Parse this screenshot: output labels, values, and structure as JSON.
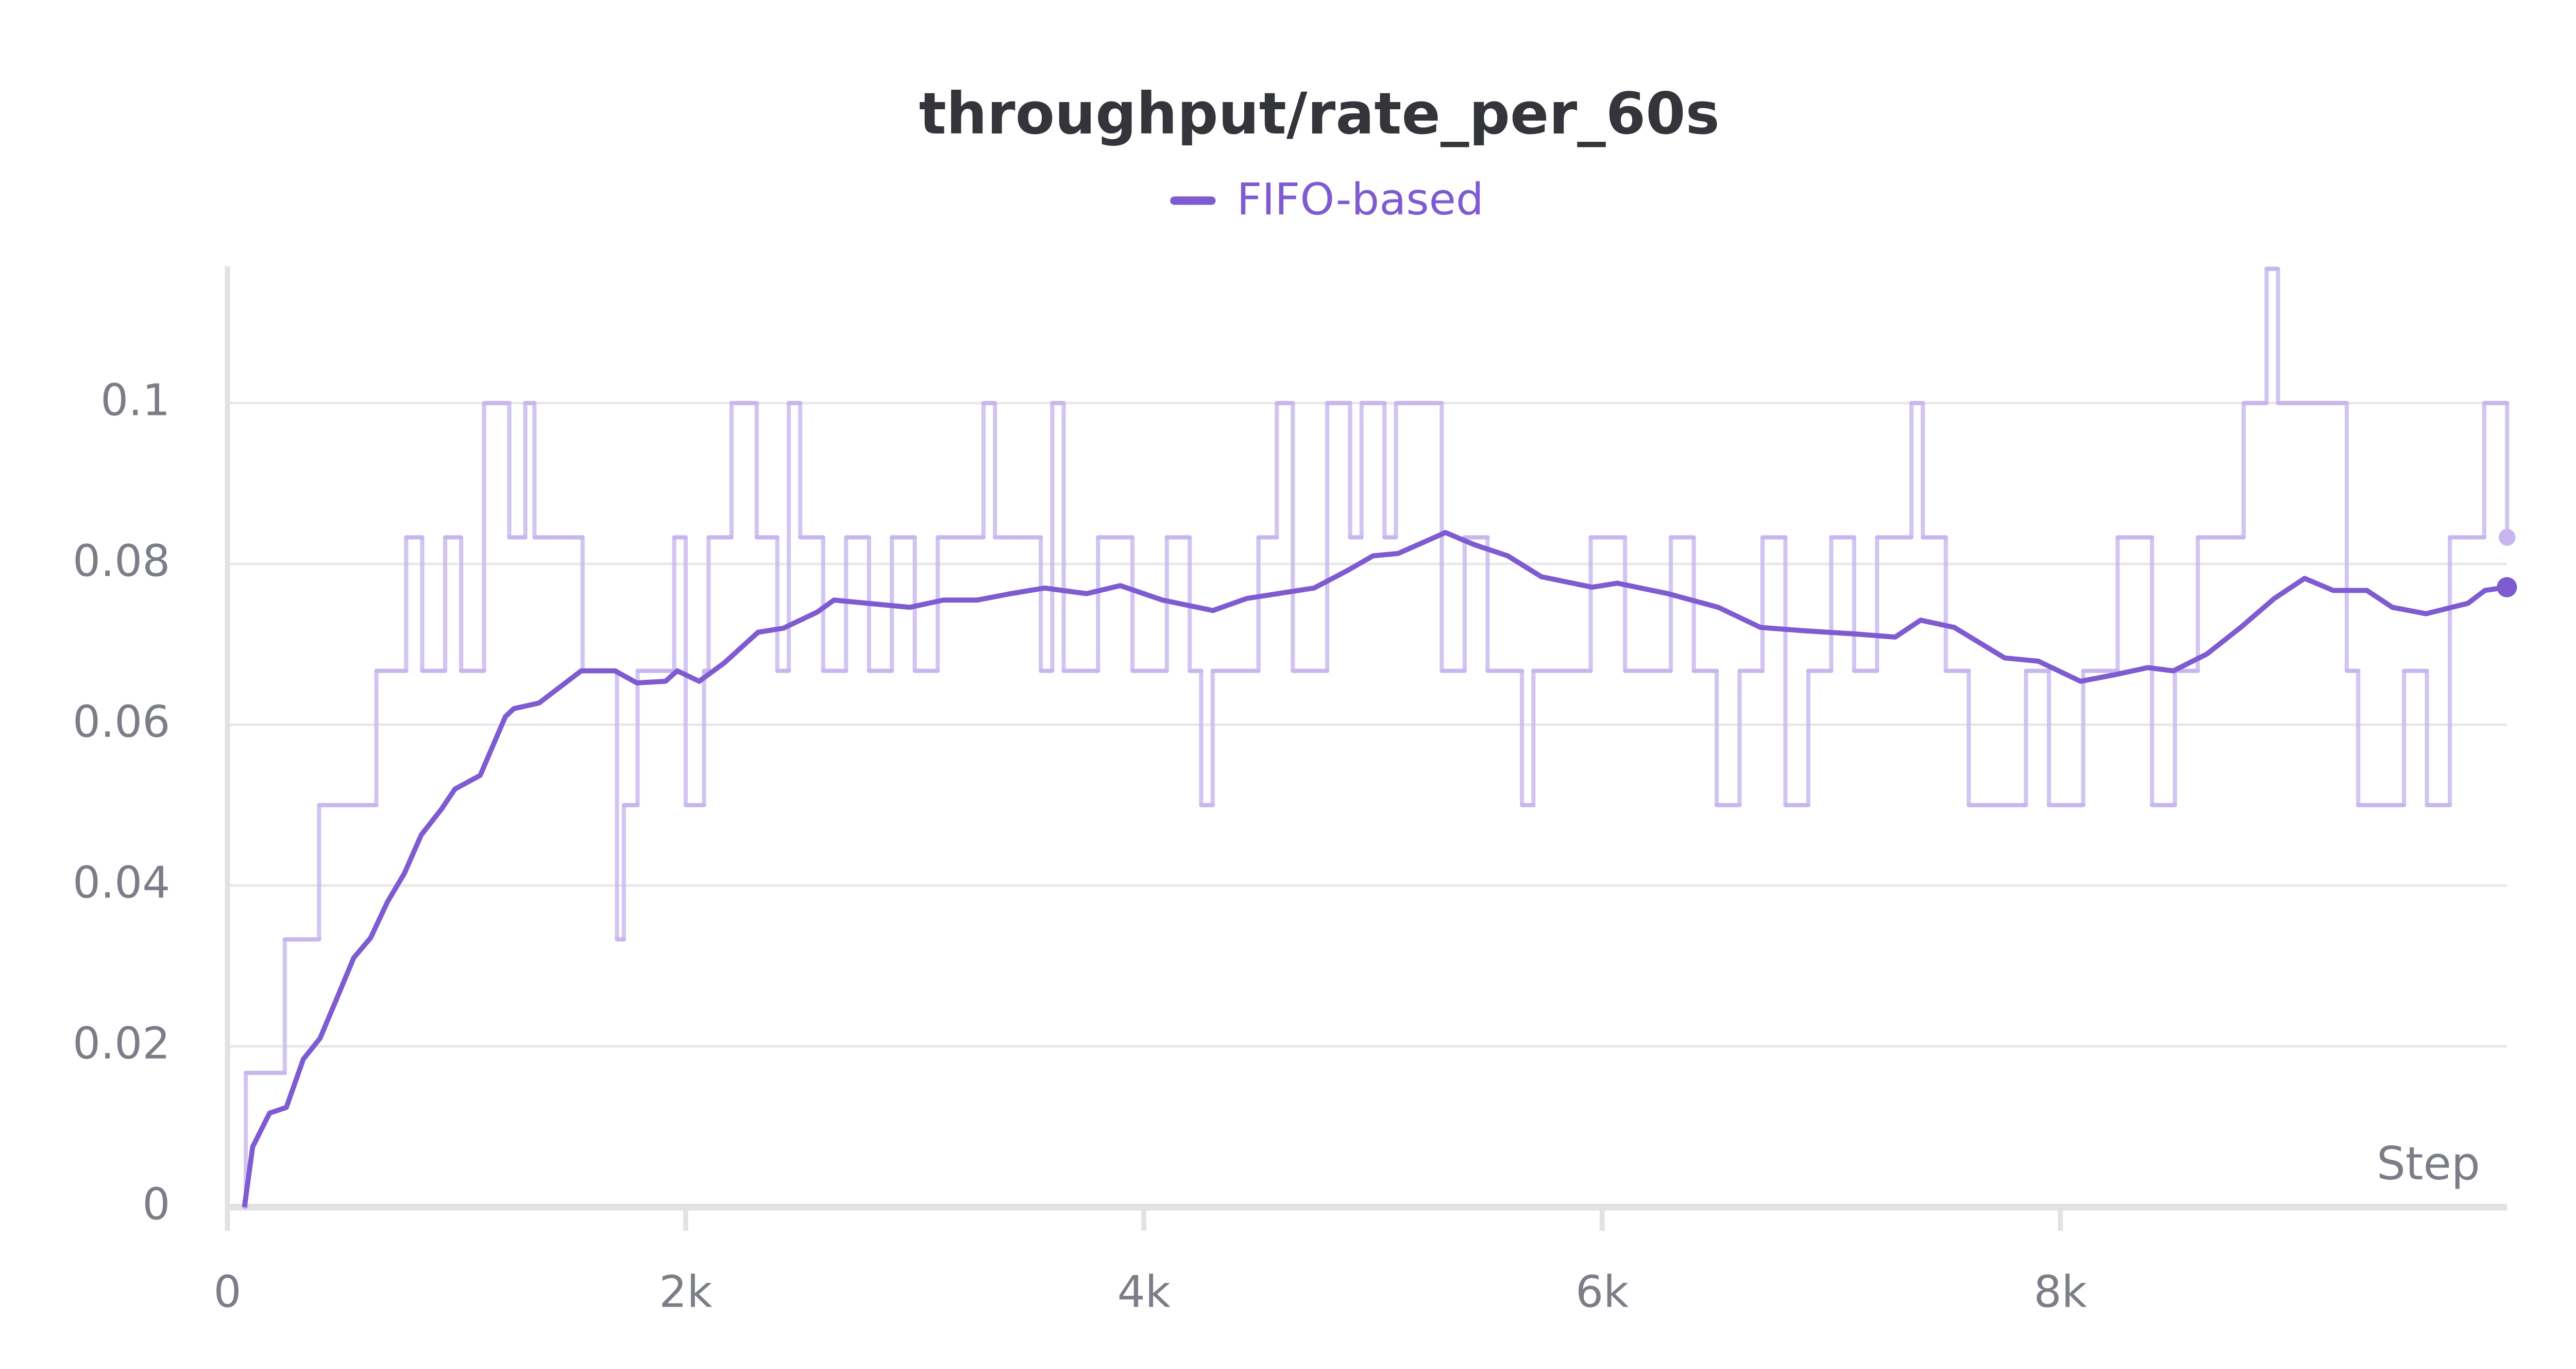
{
  "chart_data": {
    "type": "line",
    "title": "throughput/rate_per_60s",
    "x_label": "Step",
    "xlim": [
      0,
      9950
    ],
    "ylim": [
      0,
      0.117
    ],
    "xticks": [
      0,
      {
        "value": 2000,
        "label": "2k"
      },
      {
        "value": 4000,
        "label": "4k"
      },
      {
        "value": 6000,
        "label": "6k"
      },
      {
        "value": 8000,
        "label": "8k"
      }
    ],
    "yticks": [
      0,
      0.02,
      0.04,
      0.06,
      0.08,
      0.1
    ],
    "grid": true,
    "legend": "top",
    "series": [
      {
        "name": "FIFO-based",
        "color": "#7e5bd0",
        "raw_color": "#c8b7ee",
        "x": [
          74,
          110,
          184,
          257,
          331,
          404,
          478,
          551,
          625,
          699,
          772,
          846,
          934,
          993,
          1103,
          1213,
          1250,
          1360,
          1544,
          1691,
          1787,
          1912,
          1963,
          2059,
          2169,
          2316,
          2426,
          2574,
          2647,
          2831,
          2978,
          3125,
          3272,
          3419,
          3566,
          3750,
          3897,
          4081,
          4301,
          4449,
          4743,
          4890,
          5000,
          5110,
          5316,
          5441,
          5588,
          5735,
          5956,
          6066,
          6287,
          6507,
          6691,
          6875,
          7096,
          7279,
          7390,
          7537,
          7757,
          7904,
          8088,
          8235,
          8382,
          8493,
          8640,
          8787,
          8934,
          9066,
          9191,
          9338,
          9449,
          9596,
          9779,
          9853,
          9949
        ],
        "values": [
          0,
          0.0075,
          0.0117,
          0.0124,
          0.0184,
          0.021,
          0.026,
          0.031,
          0.0335,
          0.038,
          0.0415,
          0.0463,
          0.0495,
          0.052,
          0.0537,
          0.061,
          0.062,
          0.0627,
          0.0667,
          0.0667,
          0.0652,
          0.0654,
          0.0667,
          0.0654,
          0.0677,
          0.0715,
          0.072,
          0.074,
          0.0755,
          0.075,
          0.0746,
          0.0755,
          0.0755,
          0.0763,
          0.077,
          0.0763,
          0.0773,
          0.0755,
          0.0742,
          0.0757,
          0.077,
          0.0792,
          0.081,
          0.0813,
          0.0839,
          0.0824,
          0.081,
          0.0784,
          0.0771,
          0.0776,
          0.0763,
          0.0746,
          0.0721,
          0.0717,
          0.0713,
          0.0709,
          0.073,
          0.0721,
          0.0683,
          0.0679,
          0.0654,
          0.0662,
          0.0671,
          0.0667,
          0.0688,
          0.0721,
          0.0757,
          0.0782,
          0.0767,
          0.0767,
          0.0746,
          0.0738,
          0.0751,
          0.0767,
          0.0771
        ],
        "raw_x": [
          74,
          80,
          250,
          400,
          650,
          780,
          850,
          950,
          1020,
          1120,
          1230,
          1300,
          1340,
          1550,
          1700,
          1730,
          1790,
          1950,
          2000,
          2080,
          2100,
          2200,
          2310,
          2400,
          2450,
          2500,
          2600,
          2700,
          2800,
          2900,
          3000,
          3100,
          3300,
          3350,
          3550,
          3600,
          3650,
          3800,
          3950,
          4100,
          4200,
          4250,
          4300,
          4500,
          4580,
          4650,
          4800,
          4900,
          4950,
          5050,
          5100,
          5300,
          5400,
          5500,
          5650,
          5700,
          5950,
          6100,
          6300,
          6400,
          6500,
          6600,
          6700,
          6800,
          6900,
          7000,
          7100,
          7200,
          7350,
          7400,
          7500,
          7600,
          7850,
          7950,
          8100,
          8250,
          8400,
          8500,
          8600,
          8800,
          8900,
          8950,
          9250,
          9300,
          9500,
          9600,
          9700,
          9850,
          9950
        ],
        "raw_values": [
          0,
          0.0167,
          0.0333,
          0.05,
          0.0667,
          0.0833,
          0.0667,
          0.0833,
          0.0667,
          0.1,
          0.0833,
          0.1,
          0.0833,
          0.0667,
          0.0333,
          0.05,
          0.0667,
          0.0833,
          0.05,
          0.0667,
          0.0833,
          0.1,
          0.0833,
          0.0667,
          0.1,
          0.0833,
          0.0667,
          0.0833,
          0.0667,
          0.0833,
          0.0667,
          0.0833,
          0.1,
          0.0833,
          0.0667,
          0.1,
          0.0667,
          0.0833,
          0.0667,
          0.0833,
          0.0667,
          0.05,
          0.0667,
          0.0833,
          0.1,
          0.0667,
          0.1,
          0.0833,
          0.1,
          0.0833,
          0.1,
          0.0667,
          0.0833,
          0.0667,
          0.05,
          0.0667,
          0.0833,
          0.0667,
          0.0833,
          0.0667,
          0.05,
          0.0667,
          0.0833,
          0.05,
          0.0667,
          0.0833,
          0.0667,
          0.0833,
          0.1,
          0.0833,
          0.0667,
          0.05,
          0.0667,
          0.05,
          0.0667,
          0.0833,
          0.05,
          0.0667,
          0.0833,
          0.1,
          0.1167,
          0.1,
          0.0667,
          0.05,
          0.0667,
          0.05,
          0.0833,
          0.1,
          0.0833
        ]
      }
    ]
  }
}
